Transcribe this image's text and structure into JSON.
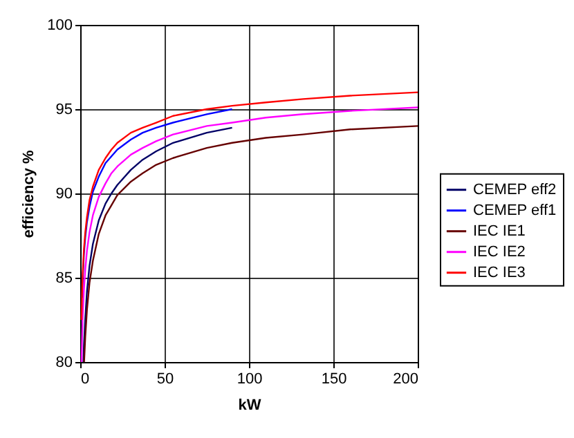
{
  "chart_data": {
    "type": "line",
    "xlabel": "kW",
    "ylabel": "efficiency %",
    "xlim": [
      0,
      200
    ],
    "ylim": [
      80,
      100
    ],
    "xticks": [
      0,
      50,
      100,
      150,
      200
    ],
    "yticks": [
      80,
      85,
      90,
      95,
      100
    ],
    "grid": true,
    "legend": "right",
    "marker": "none",
    "line_style": "solid",
    "series": [
      {
        "name": "CEMEP eff2",
        "color": "#000066",
        "x": [
          1.9,
          2.2,
          3,
          4,
          5.5,
          7.5,
          11,
          15,
          18.5,
          22,
          30,
          37,
          45,
          55,
          75,
          90
        ],
        "values": [
          80,
          81,
          82.6,
          84.2,
          85.7,
          87,
          88.4,
          89.4,
          90,
          90.5,
          91.4,
          92,
          92.5,
          93,
          93.6,
          93.9
        ]
      },
      {
        "name": "CEMEP eff1",
        "color": "#0000ff",
        "x": [
          1.1,
          1.5,
          2.2,
          3,
          4,
          5.5,
          7.5,
          11,
          15,
          18.5,
          22,
          30,
          37,
          45,
          55,
          75,
          90
        ],
        "values": [
          83.8,
          85,
          86.4,
          87.4,
          88.3,
          89.2,
          90.1,
          91,
          91.8,
          92.2,
          92.6,
          93.2,
          93.6,
          93.9,
          94.2,
          94.7,
          95
        ]
      },
      {
        "name": "IEC IE1",
        "color": "#660000",
        "x": [
          2.3,
          3,
          4,
          5.5,
          7.5,
          11,
          15,
          18.5,
          22,
          30,
          37,
          45,
          55,
          75,
          90,
          110,
          132,
          160,
          200
        ],
        "values": [
          80,
          81.5,
          83.1,
          84.7,
          86,
          87.6,
          88.7,
          89.3,
          89.9,
          90.7,
          91.2,
          91.7,
          92.1,
          92.7,
          93,
          93.3,
          93.5,
          93.8,
          94
        ]
      },
      {
        "name": "IEC IE2",
        "color": "#ff00ff",
        "x": [
          0.8,
          1.1,
          1.5,
          2.2,
          3,
          4,
          5.5,
          7.5,
          11,
          15,
          18.5,
          22,
          30,
          37,
          45,
          55,
          75,
          90,
          110,
          132,
          160,
          200
        ],
        "values": [
          80,
          81.4,
          82.8,
          84.3,
          85.5,
          86.6,
          87.7,
          88.7,
          89.8,
          90.6,
          91.2,
          91.6,
          92.3,
          92.7,
          93.1,
          93.5,
          94,
          94.2,
          94.5,
          94.7,
          94.9,
          95.1
        ]
      },
      {
        "name": "IEC IE3",
        "color": "#ff0000",
        "x": [
          0.75,
          1.1,
          1.5,
          2.2,
          3,
          4,
          5.5,
          7.5,
          11,
          15,
          18.5,
          22,
          30,
          37,
          45,
          55,
          75,
          90,
          110,
          132,
          160,
          200
        ],
        "values": [
          82.5,
          84.1,
          85.3,
          86.7,
          87.7,
          88.6,
          89.6,
          90.4,
          91.4,
          92.1,
          92.6,
          93,
          93.6,
          93.9,
          94.2,
          94.6,
          95,
          95.2,
          95.4,
          95.6,
          95.8,
          96
        ]
      }
    ]
  }
}
